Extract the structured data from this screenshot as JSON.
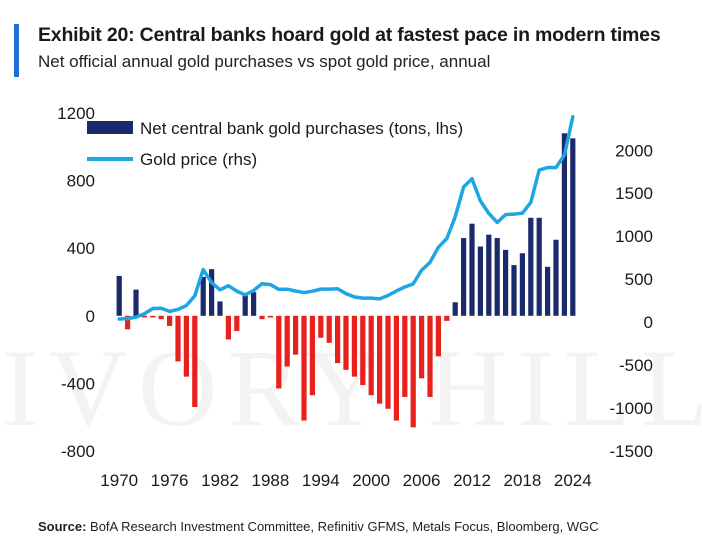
{
  "header": {
    "title": "Exhibit 20: Central banks hoard gold at fastest pace in modern times",
    "subtitle": "Net official annual gold purchases vs spot gold price, annual"
  },
  "source": {
    "label": "Source:",
    "text": "BofA Research Investment Committee, Refinitiv GFMS, Metals Focus, Bloomberg, WGC"
  },
  "watermark": {
    "text": "IVORY HILL"
  },
  "colors": {
    "bars_positive": "#1b2a6b",
    "bars_negative": "#e8211d",
    "line": "#1ea6e3",
    "accent": "#1f6fd6"
  },
  "chart_data": {
    "type": "bar",
    "years": [
      1970,
      1971,
      1972,
      1973,
      1974,
      1975,
      1976,
      1977,
      1978,
      1979,
      1980,
      1981,
      1982,
      1983,
      1984,
      1985,
      1986,
      1987,
      1988,
      1989,
      1990,
      1991,
      1992,
      1993,
      1994,
      1995,
      1996,
      1997,
      1998,
      1999,
      2000,
      2001,
      2002,
      2003,
      2004,
      2005,
      2006,
      2007,
      2008,
      2009,
      2010,
      2011,
      2012,
      2013,
      2014,
      2015,
      2016,
      2017,
      2018,
      2019,
      2020,
      2021,
      2022,
      2023,
      2024
    ],
    "x_tick_labels": [
      "1970",
      "1976",
      "1982",
      "1988",
      "1994",
      "2000",
      "2006",
      "2012",
      "2018",
      "2024"
    ],
    "series": [
      {
        "name": "Net central bank gold purchases (tons, lhs)",
        "type": "bar",
        "axis": "left",
        "values": [
          236,
          -80,
          155,
          -10,
          -10,
          -20,
          -60,
          -270,
          -360,
          -540,
          230,
          276,
          85,
          -140,
          -90,
          130,
          140,
          -20,
          -10,
          -430,
          -300,
          -230,
          -620,
          -470,
          -130,
          -160,
          -280,
          -320,
          -360,
          -410,
          -470,
          -520,
          -550,
          -620,
          -480,
          -660,
          -370,
          -480,
          -240,
          -30,
          80,
          460,
          545,
          410,
          480,
          460,
          390,
          300,
          370,
          580,
          580,
          290,
          450,
          1080,
          1050
        ]
      },
      {
        "name": "Gold price (rhs)",
        "type": "line",
        "axis": "right",
        "values": [
          36,
          41,
          58,
          97,
          159,
          161,
          125,
          148,
          193,
          306,
          612,
          460,
          376,
          424,
          361,
          317,
          368,
          447,
          437,
          381,
          383,
          362,
          344,
          360,
          384,
          384,
          388,
          331,
          294,
          279,
          279,
          271,
          310,
          363,
          409,
          445,
          604,
          695,
          872,
          972,
          1225,
          1572,
          1669,
          1411,
          1266,
          1160,
          1251,
          1257,
          1268,
          1393,
          1770,
          1799,
          1800,
          1943,
          2390
        ]
      }
    ],
    "left_axis": {
      "min": -800,
      "max": 1200,
      "ticks": [
        "-800",
        "-400",
        "0",
        "400",
        "800",
        "1200"
      ]
    },
    "right_axis": {
      "min": -1500,
      "max": 2300,
      "ticks": [
        "-1500",
        "-1000",
        "-500",
        "0",
        "500",
        "1000",
        "1500",
        "2000"
      ]
    },
    "legend_placement": "top-left",
    "grid": false
  }
}
